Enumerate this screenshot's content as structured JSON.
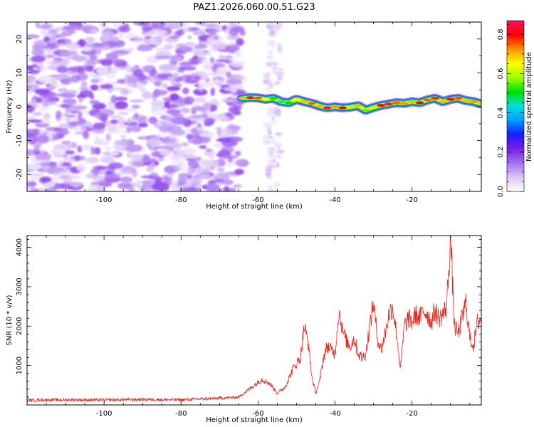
{
  "figure_title": "PAZ1.2026.060.00.51.G23",
  "chart_data": [
    {
      "type": "heatmap",
      "panel": "spectrogram",
      "xlabel": "Height of straight line (km)",
      "ylabel": "Frequency (Hz)",
      "xlim": [
        -120,
        -2
      ],
      "ylim": [
        -25,
        25
      ],
      "xticks": [
        -100,
        -80,
        -60,
        -40,
        -20
      ],
      "yticks": [
        -20,
        -10,
        0,
        10,
        20
      ],
      "colorbar": {
        "label": "Normalized spectral amplitude",
        "range": [
          0,
          0.87
        ],
        "ticks": [
          0.0,
          0.2,
          0.4,
          0.6,
          0.8
        ],
        "colormap": [
          "#ffffff",
          "#dcc8f5",
          "#a36ff0",
          "#7a1fe6",
          "#1a1aff",
          "#00a0ff",
          "#00e0e0",
          "#00e000",
          "#a0ff00",
          "#ffff00",
          "#ff9000",
          "#ff0000",
          "#ff1060"
        ]
      },
      "noise_region": {
        "x_range": [
          -120,
          -64
        ],
        "freq_range": [
          -25,
          25
        ],
        "amplitude": 0.1
      },
      "noise_strip": {
        "x_range": [
          -58,
          -54
        ],
        "freq_range": [
          -25,
          25
        ],
        "amplitude": 0.05
      },
      "signal_ridge": {
        "x": [
          -64,
          -62,
          -60,
          -58,
          -56,
          -54,
          -52,
          -50,
          -48,
          -46,
          -44,
          -42,
          -40,
          -38,
          -36,
          -34,
          -32,
          -30,
          -28,
          -26,
          -24,
          -22,
          -20,
          -18,
          -16,
          -14,
          -12,
          -10,
          -8,
          -6,
          -4,
          -2
        ],
        "freq": [
          2.5,
          2.7,
          2.6,
          2.2,
          2.5,
          1.5,
          1.2,
          2.2,
          1.5,
          1.0,
          0.2,
          -0.3,
          0.0,
          -0.3,
          -0.1,
          0.3,
          -1.0,
          -0.2,
          0.4,
          0.8,
          1.2,
          1.0,
          1.5,
          1.2,
          2.0,
          2.5,
          1.5,
          2.2,
          2.5,
          1.8,
          1.5,
          0.8
        ],
        "amplitude": [
          0.7,
          0.85,
          0.75,
          0.65,
          0.5,
          0.45,
          0.5,
          0.65,
          0.7,
          0.75,
          0.7,
          0.85,
          0.72,
          0.8,
          0.6,
          0.7,
          0.55,
          0.6,
          0.8,
          0.85,
          0.75,
          0.72,
          0.7,
          0.8,
          0.75,
          0.78,
          0.7,
          0.82,
          0.76,
          0.7,
          0.72,
          0.7
        ]
      }
    },
    {
      "type": "line",
      "panel": "snr",
      "xlabel": "Height of straight line (km)",
      "ylabel": "SNR (10 * v/v)",
      "xlim": [
        -120,
        -2
      ],
      "ylim": [
        0,
        4300
      ],
      "xticks": [
        -100,
        -80,
        -60,
        -40,
        -20
      ],
      "yticks": [
        1000,
        2000,
        3000,
        4000
      ],
      "series": [
        {
          "name": "SNR",
          "color": "#e8231c",
          "x": [
            -120,
            -110,
            -100,
            -90,
            -80,
            -70,
            -65,
            -63,
            -61,
            -59,
            -57,
            -55,
            -53,
            -51,
            -49,
            -48,
            -47,
            -46,
            -45,
            -44,
            -43,
            -42,
            -41,
            -40,
            -39,
            -38,
            -37,
            -36,
            -35,
            -34,
            -33,
            -32,
            -31,
            -30,
            -29,
            -28,
            -27,
            -26,
            -25,
            -24,
            -23,
            -22,
            -21,
            -20,
            -19,
            -18,
            -17,
            -16,
            -15,
            -14,
            -13,
            -12,
            -11,
            -10,
            -9,
            -8,
            -7,
            -6,
            -5,
            -4,
            -3,
            -2
          ],
          "y": [
            120,
            130,
            125,
            140,
            130,
            170,
            200,
            350,
            500,
            650,
            550,
            300,
            450,
            900,
            1200,
            2000,
            1600,
            700,
            300,
            600,
            1200,
            1500,
            1400,
            1300,
            2400,
            1900,
            1600,
            1500,
            1700,
            1300,
            1200,
            1300,
            2000,
            2600,
            1700,
            1400,
            1800,
            2300,
            2500,
            1800,
            900,
            2000,
            2200,
            2100,
            2300,
            2200,
            2400,
            2300,
            2100,
            2400,
            2200,
            2300,
            2500,
            4300,
            2000,
            1800,
            2200,
            2600,
            1700,
            1500,
            2100,
            2200
          ]
        }
      ]
    }
  ]
}
